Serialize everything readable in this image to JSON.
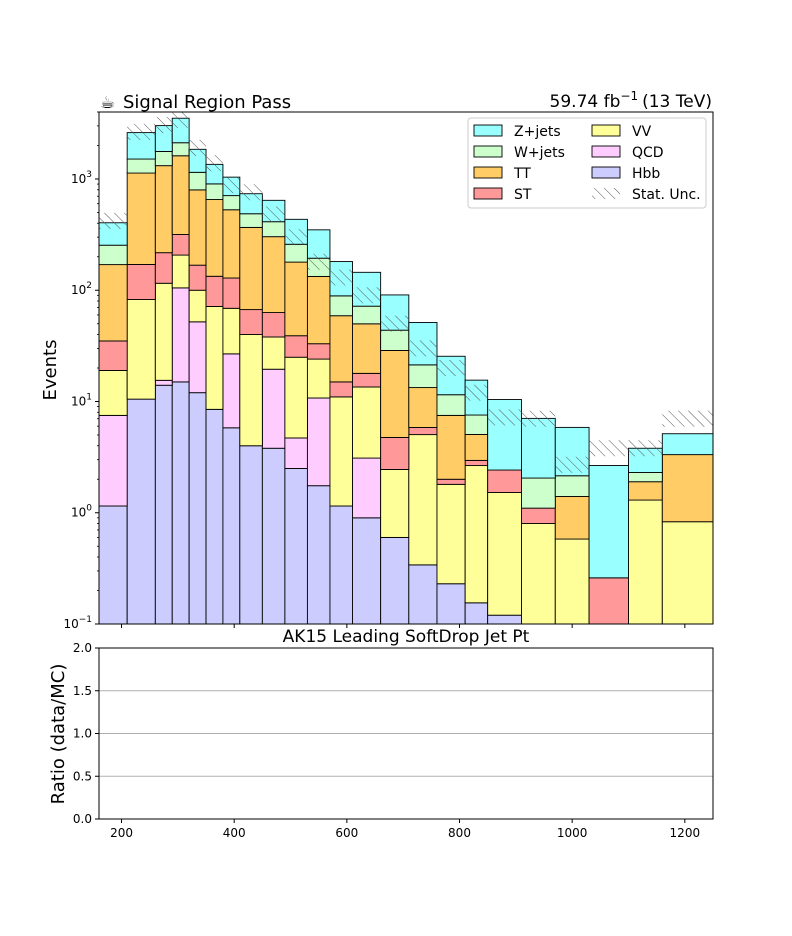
{
  "header": {
    "icon": "coffee-icon",
    "title": "Signal Region Pass",
    "lumi_value": "59.74 fb",
    "lumi_exp": "−1",
    "lumi_suffix": "(13 TeV)"
  },
  "chart_data": [
    {
      "type": "area",
      "style": "stacked-step-histogram",
      "xlabel": "AK15 Leading SoftDrop Jet Pt",
      "ylabel": "Events",
      "yscale": "log",
      "xlim": [
        160,
        1250
      ],
      "ylim": [
        0.1,
        4000
      ],
      "y_ticks": [
        {
          "value": 0.1,
          "base": "10",
          "exp": "−1"
        },
        {
          "value": 1,
          "base": "10",
          "exp": "0"
        },
        {
          "value": 10,
          "base": "10",
          "exp": "1"
        },
        {
          "value": 100,
          "base": "10",
          "exp": "2"
        },
        {
          "value": 1000,
          "base": "10",
          "exp": "3"
        }
      ],
      "bin_edges": [
        160,
        210,
        260,
        290,
        320,
        350,
        380,
        410,
        450,
        490,
        530,
        570,
        610,
        660,
        710,
        760,
        810,
        850,
        910,
        970,
        1030,
        1100,
        1160,
        1250
      ],
      "legend_position": "top-right",
      "stack_order": [
        "Hbb",
        "QCD",
        "VV",
        "ST",
        "TT",
        "W+jets",
        "Z+jets"
      ],
      "series": [
        {
          "name": "Hbb",
          "color": "#ccccff",
          "values": [
            1.15,
            10.5,
            14,
            15,
            12,
            8.5,
            5.8,
            4.0,
            3.8,
            2.5,
            1.75,
            1.15,
            0.9,
            0.6,
            0.34,
            0.23,
            0.155,
            0.12,
            0.1,
            0.1,
            0.1,
            0.1,
            0.1
          ]
        },
        {
          "name": "QCD",
          "color": "#ffccff",
          "values": [
            6.35,
            0,
            1.5,
            90,
            40,
            0,
            21,
            0,
            15.7,
            2.2,
            9,
            0,
            2.2,
            0,
            0,
            0,
            0,
            0,
            0,
            0,
            0,
            0,
            0
          ]
        },
        {
          "name": "VV",
          "color": "#ffff99",
          "values": [
            11.5,
            72,
            100,
            102,
            48,
            63,
            42,
            36,
            18.5,
            20.3,
            13.3,
            9.85,
            10.4,
            1.85,
            4.7,
            1.57,
            2.5,
            1.4,
            0.7,
            0.48,
            0,
            1.2,
            0.73
          ]
        },
        {
          "name": "ST",
          "color": "#ff9999",
          "values": [
            16,
            88,
            102,
            110,
            68,
            62,
            60,
            27,
            25,
            14,
            9,
            4,
            4.4,
            2.3,
            0.8,
            0.2,
            0.3,
            0.9,
            0.3,
            0,
            0.16,
            0,
            0
          ]
        },
        {
          "name": "TT",
          "color": "#ffcc66",
          "values": [
            135,
            960,
            1100,
            1300,
            630,
            520,
            400,
            300,
            240,
            140,
            100,
            44,
            32,
            24,
            7.5,
            5.5,
            2.1,
            0,
            0,
            0.82,
            0,
            0.6,
            2.5
          ]
        },
        {
          "name": "W+jets",
          "color": "#ccffcc",
          "values": [
            84,
            380,
            450,
            500,
            350,
            250,
            180,
            120,
            110,
            80,
            61,
            30,
            22,
            15,
            8,
            4,
            2.5,
            0,
            0.95,
            0.75,
            0,
            0.4,
            0
          ]
        },
        {
          "name": "Z+jets",
          "color": "#99ffff",
          "values": [
            150,
            1100,
            1250,
            1400,
            700,
            450,
            330,
            250,
            230,
            175,
            155,
            92,
            73,
            47,
            30,
            14,
            8,
            8,
            5,
            3.7,
            2.4,
            1.5,
            1.8
          ]
        },
        {
          "name": "Stat. Unc.",
          "color": "#555555",
          "pattern": "hatch",
          "values": [
            420,
            2650,
            3050,
            3400,
            1900,
            1390,
            880,
            760,
            480,
            300,
            180,
            130,
            90,
            50,
            30,
            20,
            12,
            7.2,
            7.0,
            2.7,
            3.8,
            3.8,
            7.0
          ]
        }
      ]
    },
    {
      "type": "line",
      "xlabel": "",
      "ylabel": "Ratio (data/MC)",
      "xlim": [
        160,
        1250
      ],
      "ylim": [
        0.0,
        2.0
      ],
      "y_ticks": [
        "0.0",
        "0.5",
        "1.0",
        "1.5",
        "2.0"
      ],
      "x_ticks": [
        "200",
        "400",
        "600",
        "800",
        "1000",
        "1200"
      ],
      "grid": "horizontal",
      "series": []
    }
  ]
}
